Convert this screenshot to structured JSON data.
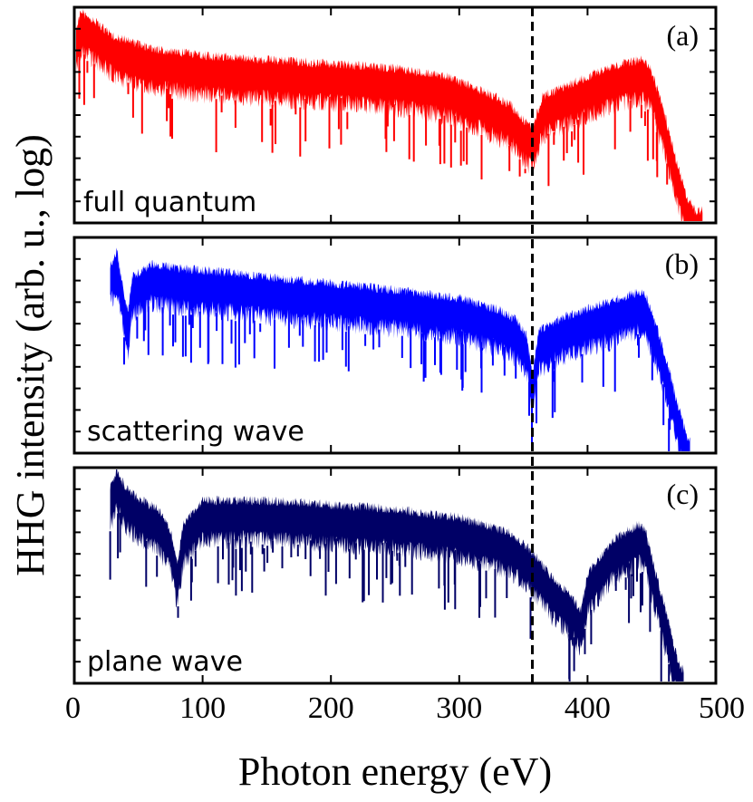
{
  "chart_data": {
    "type": "line",
    "xlabel": "Photon energy (eV)",
    "ylabel": "HHG intensity (arb. u., log)",
    "xlim": [
      0,
      500
    ],
    "xticks": [
      0,
      100,
      200,
      300,
      400,
      500
    ],
    "xtick_labels": [
      "0",
      "100",
      "200",
      "300",
      "400",
      "500"
    ],
    "marker_line": {
      "x": 357,
      "style": "dashed",
      "color": "#000000"
    },
    "panels": [
      {
        "id": "a",
        "tag": "(a)",
        "note": "full quantum",
        "color": "#ff0000",
        "ylim": [
          0,
          10
        ],
        "x_range": [
          0,
          490
        ],
        "envelope": [
          [
            0,
            8.2
          ],
          [
            5,
            9.3
          ],
          [
            15,
            8.9
          ],
          [
            30,
            8.2
          ],
          [
            60,
            7.6
          ],
          [
            100,
            7.3
          ],
          [
            150,
            7.1
          ],
          [
            200,
            6.9
          ],
          [
            250,
            6.7
          ],
          [
            290,
            6.3
          ],
          [
            320,
            5.6
          ],
          [
            340,
            5.0
          ],
          [
            350,
            4.3
          ],
          [
            357,
            3.9
          ],
          [
            365,
            5.4
          ],
          [
            380,
            5.8
          ],
          [
            400,
            6.3
          ],
          [
            420,
            6.8
          ],
          [
            435,
            7.0
          ],
          [
            443,
            7.1
          ],
          [
            450,
            6.6
          ],
          [
            460,
            4.6
          ],
          [
            470,
            2.2
          ],
          [
            478,
            0.6
          ],
          [
            484,
            0.1
          ],
          [
            490,
            0.1
          ]
        ]
      },
      {
        "id": "b",
        "tag": "(b)",
        "note": "scattering wave",
        "color": "#0000ff",
        "ylim": [
          0,
          10
        ],
        "x_range": [
          28,
          480
        ],
        "envelope": [
          [
            28,
            8.3
          ],
          [
            33,
            8.9
          ],
          [
            38,
            7.2
          ],
          [
            42,
            6.1
          ],
          [
            45,
            7.7
          ],
          [
            60,
            8.3
          ],
          [
            80,
            8.1
          ],
          [
            120,
            7.9
          ],
          [
            160,
            7.6
          ],
          [
            200,
            7.4
          ],
          [
            250,
            7.1
          ],
          [
            300,
            6.7
          ],
          [
            330,
            6.2
          ],
          [
            345,
            5.7
          ],
          [
            353,
            4.9
          ],
          [
            357,
            3.1
          ],
          [
            362,
            5.2
          ],
          [
            380,
            5.8
          ],
          [
            400,
            6.2
          ],
          [
            425,
            6.7
          ],
          [
            440,
            7.0
          ],
          [
            445,
            6.9
          ],
          [
            455,
            5.2
          ],
          [
            465,
            3.0
          ],
          [
            472,
            1.4
          ],
          [
            478,
            0.3
          ],
          [
            480,
            0.1
          ]
        ]
      },
      {
        "id": "c",
        "tag": "(c)",
        "note": "plane wave",
        "color": "#000066",
        "ylim": [
          0,
          10
        ],
        "x_range": [
          28,
          475
        ],
        "envelope": [
          [
            28,
            8.7
          ],
          [
            33,
            9.4
          ],
          [
            40,
            8.6
          ],
          [
            50,
            8.1
          ],
          [
            65,
            7.6
          ],
          [
            75,
            6.6
          ],
          [
            80,
            5.0
          ],
          [
            85,
            6.9
          ],
          [
            100,
            8.0
          ],
          [
            150,
            8.0
          ],
          [
            200,
            7.8
          ],
          [
            250,
            7.6
          ],
          [
            300,
            7.2
          ],
          [
            340,
            6.5
          ],
          [
            357,
            5.6
          ],
          [
            370,
            4.6
          ],
          [
            385,
            3.7
          ],
          [
            395,
            2.9
          ],
          [
            400,
            4.6
          ],
          [
            420,
            6.2
          ],
          [
            440,
            6.9
          ],
          [
            445,
            6.6
          ],
          [
            455,
            4.2
          ],
          [
            465,
            2.0
          ],
          [
            470,
            0.6
          ],
          [
            475,
            0.1
          ]
        ]
      }
    ]
  }
}
